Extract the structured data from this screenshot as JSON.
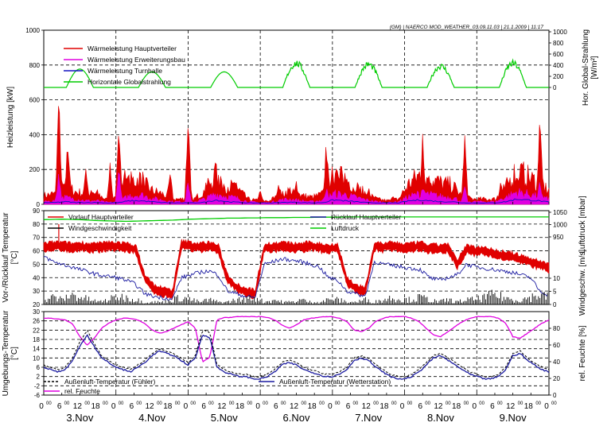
{
  "header": "(GM) | NAERCO MOD_WEATHER_03.09.11.03 | 21.1.2009 | 11:17",
  "x_axis": {
    "hour_labels": [
      "0",
      "6",
      "12",
      "18"
    ],
    "hour_superscript": "00",
    "day_labels": [
      "3.Nov",
      "4.Nov",
      "5.Nov",
      "6.Nov",
      "7.Nov",
      "8.Nov",
      "9.Nov"
    ],
    "final_label": "0"
  },
  "chart_data": [
    {
      "type": "line",
      "panel": "heat-output",
      "ylabel": "Heizleistung [kW]",
      "y2label": "Hor. Global-Strahlung [W/m²]",
      "ylim": [
        0,
        1000
      ],
      "y_ticks": [
        0,
        200,
        400,
        600,
        800,
        1000
      ],
      "y2_ticks": [
        0,
        200,
        400,
        600,
        800,
        1000
      ],
      "y2_ticks_shown": [
        0,
        200,
        400,
        600,
        800,
        1000
      ],
      "x_range_hours": [
        0,
        168
      ],
      "legend": "top-left",
      "series": [
        {
          "name": "Wärmeleistung Hauptverteiler",
          "color": "#e00000",
          "kind": "area",
          "base": [
            50,
            60,
            110,
            70,
            60,
            60,
            20,
            40,
            130,
            150,
            80,
            60,
            30,
            30,
            30,
            80,
            170,
            110,
            90,
            30,
            20,
            20,
            60,
            80,
            50,
            40,
            60,
            160,
            150,
            100,
            60,
            30,
            20,
            30,
            120,
            170,
            150,
            120,
            110,
            40,
            30,
            30,
            30,
            100,
            200,
            160,
            120,
            80
          ],
          "spikes": [
            [
              5,
              680
            ],
            [
              8,
              420
            ],
            [
              14,
              250
            ],
            [
              22,
              250
            ],
            [
              25,
              580
            ],
            [
              27,
              280
            ],
            [
              33,
              180
            ],
            [
              42,
              230
            ],
            [
              48,
              550
            ],
            [
              54,
              150
            ],
            [
              58,
              180
            ],
            [
              64,
              160
            ],
            [
              72,
              90
            ],
            [
              78,
              140
            ],
            [
              84,
              150
            ],
            [
              94,
              400
            ],
            [
              96,
              280
            ],
            [
              99,
              180
            ],
            [
              104,
              90
            ],
            [
              108,
              110
            ],
            [
              116,
              60
            ],
            [
              126,
              420
            ],
            [
              128,
              210
            ],
            [
              140,
              430
            ],
            [
              152,
              150
            ],
            [
              158,
              120
            ],
            [
              165,
              560
            ]
          ]
        },
        {
          "name": "Wärmeleistung Erweiterungsbau",
          "color": "#e000e0",
          "kind": "area",
          "base": [
            15,
            20,
            40,
            30,
            20,
            20,
            10,
            15,
            50,
            55,
            35,
            25,
            15,
            15,
            15,
            30,
            60,
            45,
            35,
            15,
            10,
            10,
            25,
            30,
            20,
            15,
            25,
            60,
            55,
            40,
            25,
            15,
            10,
            15,
            45,
            60,
            55,
            45,
            40,
            15,
            15,
            15,
            15,
            40,
            70,
            60,
            45,
            30
          ],
          "spikes": [
            [
              5,
              200
            ],
            [
              25,
              240
            ],
            [
              48,
              150
            ],
            [
              94,
              110
            ],
            [
              126,
              120
            ],
            [
              140,
              110
            ],
            [
              165,
              150
            ]
          ]
        },
        {
          "name": "Wärmeleistung Turnhalle",
          "color": "#1010c0",
          "kind": "line",
          "base": [
            10,
            10,
            15,
            10,
            10,
            10,
            8,
            10,
            20,
            20,
            15,
            10,
            8,
            8,
            8,
            12,
            25,
            15,
            12,
            8,
            8,
            8,
            10,
            12,
            10,
            8,
            10,
            25,
            20,
            15,
            10,
            8,
            8,
            8,
            20,
            25,
            20,
            15,
            15,
            8,
            8,
            8,
            8,
            15,
            30,
            25,
            20,
            12
          ]
        },
        {
          "name": "Horizontale Globalstrahlung",
          "color": "#00cc00",
          "kind": "solar",
          "axis": "y2",
          "peaks": [
            [
              12,
              330
            ],
            [
              36,
              280
            ],
            [
              60,
              280
            ],
            [
              84,
              430
            ],
            [
              108,
              410
            ],
            [
              132,
              380
            ],
            [
              156,
              430
            ]
          ]
        }
      ]
    },
    {
      "type": "line",
      "panel": "temperatures-pressure",
      "ylabel": "Vor-/Rücklauf Temperatur [°C]",
      "y2label": "Luftdruck [mbar] / Windgeschw. [m/s]",
      "ylim": [
        20,
        90
      ],
      "y_ticks": [
        20,
        30,
        40,
        50,
        60,
        70,
        80,
        90
      ],
      "y2_ticks_pressure": [
        950,
        1000,
        1050
      ],
      "y2_ticks_wind": [
        0,
        5,
        10
      ],
      "x_range_hours": [
        0,
        168
      ],
      "legend": "top",
      "series": [
        {
          "name": "Vorlauf Hauptverteiler",
          "color": "#e00000",
          "kind": "band",
          "values": [
            63,
            64,
            64,
            63,
            64,
            63,
            63,
            64,
            64,
            63,
            62,
            40,
            32,
            30,
            28,
            65,
            64,
            63,
            64,
            62,
            40,
            33,
            30,
            28,
            63,
            63,
            64,
            63,
            63,
            64,
            63,
            62,
            63,
            38,
            32,
            30,
            64,
            63,
            64,
            63,
            63,
            64,
            62,
            62,
            63,
            50,
            62,
            60,
            61,
            58,
            57,
            56,
            54,
            52,
            50,
            48
          ]
        },
        {
          "name": "Rücklauf Hauptverteiler",
          "color": "#1a1aa0",
          "kind": "line",
          "values": [
            56,
            52,
            50,
            48,
            46,
            44,
            42,
            41,
            40,
            38,
            35,
            28,
            26,
            25,
            24,
            40,
            42,
            44,
            45,
            42,
            30,
            28,
            26,
            25,
            50,
            52,
            54,
            53,
            52,
            50,
            48,
            40,
            38,
            30,
            28,
            26,
            52,
            50,
            49,
            48,
            47,
            46,
            40,
            38,
            40,
            42,
            50,
            48,
            47,
            46,
            45,
            44,
            42,
            40,
            30,
            27
          ]
        },
        {
          "name": "Windgeschwindigkeit",
          "color": "#000000",
          "kind": "bars",
          "values": [
            2,
            3,
            2,
            4,
            3,
            2,
            1,
            2,
            3,
            3,
            2,
            1,
            1,
            1,
            2,
            3,
            2,
            1,
            2,
            1,
            1,
            2,
            2,
            3,
            1,
            2,
            1,
            1,
            2,
            1,
            1,
            2,
            2,
            1,
            1,
            2,
            1,
            2,
            3,
            2,
            2,
            3,
            2,
            1,
            2,
            1,
            2,
            2,
            3,
            4,
            3,
            2,
            2,
            3,
            4,
            3
          ]
        },
        {
          "name": "Luftdruck",
          "color": "#00cc00",
          "kind": "line",
          "axis": "y2",
          "values": [
            1020,
            1021,
            1022,
            1021,
            1020,
            1018,
            1016,
            1015,
            1014,
            1013,
            1014,
            1015,
            1016,
            1017,
            1018,
            1020,
            1022,
            1023,
            1024,
            1025,
            1026,
            1026,
            1027,
            1027,
            1028,
            1028,
            1028,
            1029,
            1029,
            1029,
            1030,
            1030,
            1030,
            1031,
            1031,
            1031,
            1031,
            1031,
            1031,
            1031,
            1031,
            1031,
            1031,
            1031,
            1031,
            1031,
            1031,
            1031,
            1031,
            1031,
            1031,
            1031,
            1031,
            1031,
            1031,
            1031
          ]
        }
      ]
    },
    {
      "type": "line",
      "panel": "ambient",
      "ylabel": "Umgebungs-Temperatur [°C]",
      "y2label": "rel. Feuchte [%]",
      "ylim": [
        -6,
        30
      ],
      "y_ticks": [
        -6,
        -2,
        2,
        6,
        10,
        14,
        18,
        22,
        26,
        30
      ],
      "y_ticks_labeled": [
        -6,
        -2,
        2,
        6,
        10,
        14,
        18,
        22,
        26,
        30
      ],
      "y2_ticks": [
        0,
        20,
        40,
        60,
        80,
        100
      ],
      "y2_ticks_labeled": [
        0,
        20,
        40,
        60,
        80
      ],
      "x_range_hours": [
        0,
        168
      ],
      "legend": "bottom",
      "series": [
        {
          "name": "Außenluft-Temperatur (Fühler)",
          "color": "#000000",
          "kind": "dashed",
          "values": [
            7,
            6,
            5,
            6,
            10,
            17,
            22,
            16,
            11,
            9,
            7,
            6,
            5,
            7,
            9,
            12,
            14,
            13,
            12,
            10,
            8,
            11,
            22,
            21,
            7,
            5,
            4,
            3,
            3,
            2,
            2,
            3,
            5,
            8,
            9,
            8,
            6,
            5,
            4,
            3,
            3,
            4,
            6,
            10,
            11,
            10,
            7,
            5,
            3,
            2,
            2,
            3,
            5,
            8,
            11,
            12,
            10,
            8,
            6,
            4,
            3,
            2,
            2,
            3,
            6,
            12,
            13,
            10,
            8,
            6,
            5
          ]
        },
        {
          "name": "Außenluft-Temperatur (Wetterstation)",
          "color": "#1a1aa0",
          "kind": "line",
          "values": [
            6,
            5,
            4,
            5,
            9,
            15,
            20,
            15,
            10,
            8,
            6,
            5,
            4,
            6,
            8,
            11,
            13,
            12,
            11,
            9,
            7,
            10,
            20,
            19,
            6,
            4,
            3,
            2,
            2,
            1,
            1,
            2,
            4,
            7,
            8,
            7,
            5,
            4,
            3,
            2,
            2,
            3,
            5,
            9,
            10,
            9,
            6,
            4,
            2,
            1,
            1,
            2,
            4,
            7,
            10,
            11,
            9,
            7,
            5,
            3,
            2,
            1,
            1,
            2,
            5,
            11,
            12,
            9,
            7,
            5,
            4
          ]
        },
        {
          "name": "rel. Feuchte",
          "color": "#e000e0",
          "kind": "line",
          "axis": "y2",
          "values": [
            92,
            92,
            91,
            90,
            85,
            70,
            60,
            68,
            80,
            86,
            90,
            92,
            92,
            90,
            86,
            78,
            74,
            76,
            80,
            84,
            88,
            80,
            40,
            45,
            90,
            93,
            93,
            94,
            94,
            94,
            94,
            93,
            90,
            84,
            80,
            84,
            90,
            92,
            93,
            94,
            94,
            92,
            88,
            78,
            76,
            80,
            88,
            92,
            94,
            94,
            94,
            92,
            88,
            80,
            72,
            70,
            76,
            82,
            88,
            92,
            94,
            94,
            94,
            92,
            86,
            70,
            68,
            74,
            80,
            86,
            90
          ]
        }
      ]
    }
  ]
}
